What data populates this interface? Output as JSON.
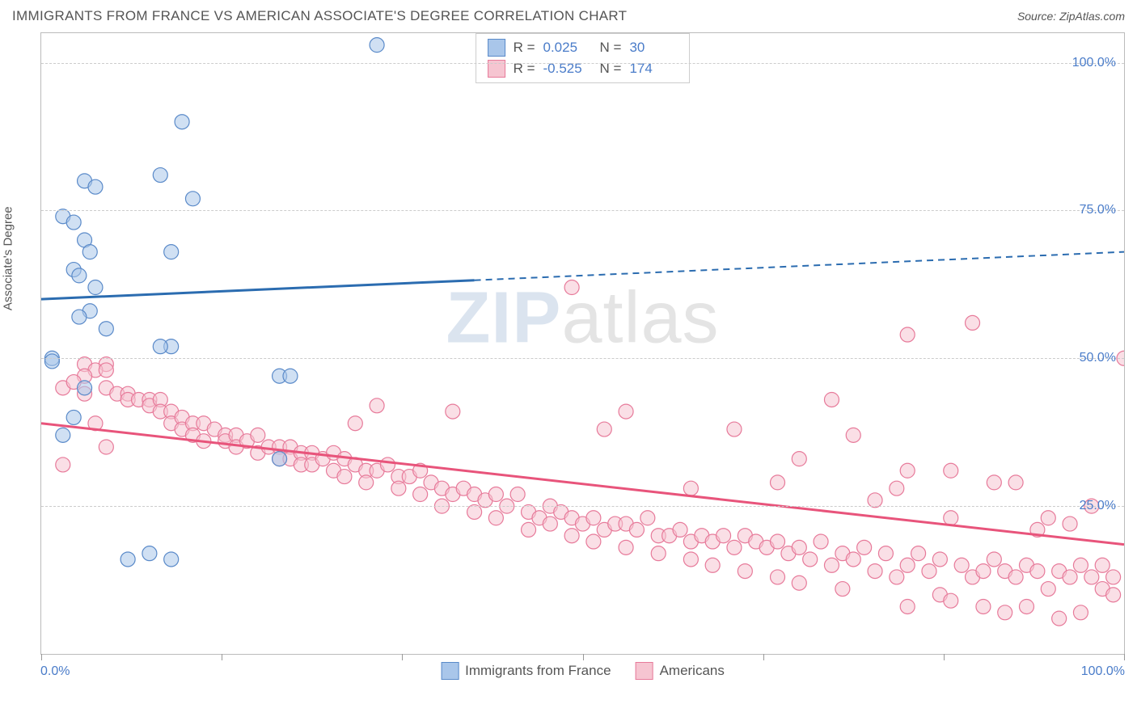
{
  "header": {
    "title": "IMMIGRANTS FROM FRANCE VS AMERICAN ASSOCIATE'S DEGREE CORRELATION CHART",
    "source_label": "Source:",
    "source_name": "ZipAtlas.com"
  },
  "chart": {
    "type": "scatter",
    "y_axis_label": "Associate's Degree",
    "xlim": [
      0,
      100
    ],
    "ylim": [
      0,
      105
    ],
    "x_ticks": [
      0,
      16.67,
      33.33,
      50,
      66.67,
      83.33,
      100
    ],
    "x_tick_labels": {
      "start": "0.0%",
      "end": "100.0%"
    },
    "y_gridlines": [
      25,
      50,
      75,
      100
    ],
    "y_tick_labels": [
      "25.0%",
      "50.0%",
      "75.0%",
      "100.0%"
    ],
    "grid_color": "#cccccc",
    "border_color": "#bbbbbb",
    "background_color": "#ffffff",
    "watermark": {
      "part1": "ZIP",
      "part2": "atlas"
    }
  },
  "series": {
    "blue": {
      "name": "Immigrants from France",
      "fill": "#a9c6ea",
      "stroke": "#5a8ac9",
      "fill_opacity": 0.55,
      "line_color": "#2b6cb0",
      "point_radius": 9,
      "trend": {
        "x1": 0,
        "y1": 60,
        "x2": 100,
        "y2": 68,
        "solid_until_x": 40
      },
      "stats": {
        "R": "0.025",
        "N": "30"
      },
      "points": [
        [
          31,
          103
        ],
        [
          13,
          90
        ],
        [
          11,
          81
        ],
        [
          4,
          80
        ],
        [
          5,
          79
        ],
        [
          14,
          77
        ],
        [
          2,
          74
        ],
        [
          3,
          73
        ],
        [
          4,
          70
        ],
        [
          4.5,
          68
        ],
        [
          12,
          68
        ],
        [
          3,
          65
        ],
        [
          3.5,
          64
        ],
        [
          5,
          62
        ],
        [
          4.5,
          58
        ],
        [
          3.5,
          57
        ],
        [
          6,
          55
        ],
        [
          12,
          52
        ],
        [
          11,
          52
        ],
        [
          1,
          50
        ],
        [
          1,
          49.5
        ],
        [
          22,
          47
        ],
        [
          23,
          47
        ],
        [
          4,
          45
        ],
        [
          3,
          40
        ],
        [
          2,
          37
        ],
        [
          22,
          33
        ],
        [
          10,
          17
        ],
        [
          8,
          16
        ],
        [
          12,
          16
        ]
      ]
    },
    "pink": {
      "name": "Americans",
      "fill": "#f6c5d1",
      "stroke": "#e77a9a",
      "fill_opacity": 0.55,
      "line_color": "#e8547b",
      "point_radius": 9,
      "trend": {
        "x1": 0,
        "y1": 39,
        "x2": 100,
        "y2": 18.5,
        "solid_until_x": 100
      },
      "stats": {
        "R": "-0.525",
        "N": "174"
      },
      "points": [
        [
          49,
          62
        ],
        [
          100,
          50
        ],
        [
          4,
          49
        ],
        [
          6,
          49
        ],
        [
          5,
          48
        ],
        [
          6,
          48
        ],
        [
          4,
          47
        ],
        [
          86,
          56
        ],
        [
          80,
          54
        ],
        [
          2,
          45
        ],
        [
          3,
          46
        ],
        [
          4,
          44
        ],
        [
          6,
          45
        ],
        [
          7,
          44
        ],
        [
          8,
          44
        ],
        [
          8,
          43
        ],
        [
          9,
          43
        ],
        [
          10,
          43
        ],
        [
          10,
          42
        ],
        [
          11,
          43
        ],
        [
          31,
          42
        ],
        [
          38,
          41
        ],
        [
          29,
          39
        ],
        [
          54,
          41
        ],
        [
          64,
          38
        ],
        [
          52,
          38
        ],
        [
          73,
          43
        ],
        [
          75,
          37
        ],
        [
          11,
          41
        ],
        [
          12,
          41
        ],
        [
          12,
          39
        ],
        [
          13,
          40
        ],
        [
          13,
          38
        ],
        [
          14,
          39
        ],
        [
          14,
          37
        ],
        [
          15,
          39
        ],
        [
          15,
          36
        ],
        [
          16,
          38
        ],
        [
          17,
          37
        ],
        [
          17,
          36
        ],
        [
          18,
          37
        ],
        [
          18,
          35
        ],
        [
          19,
          36
        ],
        [
          20,
          37
        ],
        [
          20,
          34
        ],
        [
          21,
          35
        ],
        [
          22,
          35
        ],
        [
          22,
          33
        ],
        [
          23,
          35
        ],
        [
          23,
          33
        ],
        [
          24,
          34
        ],
        [
          24,
          32
        ],
        [
          25,
          34
        ],
        [
          25,
          32
        ],
        [
          26,
          33
        ],
        [
          27,
          34
        ],
        [
          27,
          31
        ],
        [
          28,
          33
        ],
        [
          28,
          30
        ],
        [
          29,
          32
        ],
        [
          30,
          31
        ],
        [
          30,
          29
        ],
        [
          31,
          31
        ],
        [
          32,
          32
        ],
        [
          33,
          30
        ],
        [
          33,
          28
        ],
        [
          34,
          30
        ],
        [
          35,
          31
        ],
        [
          35,
          27
        ],
        [
          36,
          29
        ],
        [
          37,
          28
        ],
        [
          37,
          25
        ],
        [
          38,
          27
        ],
        [
          39,
          28
        ],
        [
          40,
          27
        ],
        [
          40,
          24
        ],
        [
          41,
          26
        ],
        [
          42,
          27
        ],
        [
          42,
          23
        ],
        [
          43,
          25
        ],
        [
          44,
          27
        ],
        [
          45,
          24
        ],
        [
          45,
          21
        ],
        [
          46,
          23
        ],
        [
          47,
          25
        ],
        [
          47,
          22
        ],
        [
          48,
          24
        ],
        [
          49,
          23
        ],
        [
          49,
          20
        ],
        [
          50,
          22
        ],
        [
          51,
          23
        ],
        [
          51,
          19
        ],
        [
          52,
          21
        ],
        [
          53,
          22
        ],
        [
          54,
          22
        ],
        [
          54,
          18
        ],
        [
          55,
          21
        ],
        [
          56,
          23
        ],
        [
          57,
          20
        ],
        [
          57,
          17
        ],
        [
          58,
          20
        ],
        [
          59,
          21
        ],
        [
          60,
          19
        ],
        [
          60,
          16
        ],
        [
          61,
          20
        ],
        [
          62,
          19
        ],
        [
          62,
          15
        ],
        [
          63,
          20
        ],
        [
          64,
          18
        ],
        [
          65,
          20
        ],
        [
          65,
          14
        ],
        [
          66,
          19
        ],
        [
          67,
          18
        ],
        [
          68,
          19
        ],
        [
          68,
          13
        ],
        [
          69,
          17
        ],
        [
          70,
          18
        ],
        [
          70,
          12
        ],
        [
          71,
          16
        ],
        [
          72,
          19
        ],
        [
          73,
          15
        ],
        [
          74,
          17
        ],
        [
          74,
          11
        ],
        [
          75,
          16
        ],
        [
          76,
          18
        ],
        [
          77,
          14
        ],
        [
          78,
          17
        ],
        [
          79,
          28
        ],
        [
          84,
          31
        ],
        [
          79,
          13
        ],
        [
          80,
          15
        ],
        [
          80,
          8
        ],
        [
          81,
          17
        ],
        [
          82,
          14
        ],
        [
          83,
          16
        ],
        [
          83,
          10
        ],
        [
          84,
          9
        ],
        [
          85,
          15
        ],
        [
          86,
          13
        ],
        [
          87,
          14
        ],
        [
          87,
          8
        ],
        [
          88,
          29
        ],
        [
          88,
          16
        ],
        [
          89,
          14
        ],
        [
          89,
          7
        ],
        [
          90,
          13
        ],
        [
          91,
          15
        ],
        [
          91,
          8
        ],
        [
          92,
          14
        ],
        [
          92,
          21
        ],
        [
          93,
          11
        ],
        [
          93,
          23
        ],
        [
          94,
          14
        ],
        [
          94,
          6
        ],
        [
          95,
          13
        ],
        [
          95,
          22
        ],
        [
          96,
          15
        ],
        [
          96,
          7
        ],
        [
          97,
          13
        ],
        [
          97,
          25
        ],
        [
          98,
          11
        ],
        [
          98,
          15
        ],
        [
          99,
          10
        ],
        [
          99,
          13
        ],
        [
          90,
          29
        ],
        [
          84,
          23
        ],
        [
          77,
          26
        ],
        [
          80,
          31
        ],
        [
          68,
          29
        ],
        [
          60,
          28
        ],
        [
          70,
          33
        ],
        [
          2,
          32
        ],
        [
          6,
          35
        ],
        [
          5,
          39
        ]
      ]
    }
  },
  "stats_legend": {
    "r_label": "R =",
    "n_label": "N ="
  },
  "bottom_legend": {
    "items": [
      "blue",
      "pink"
    ]
  }
}
